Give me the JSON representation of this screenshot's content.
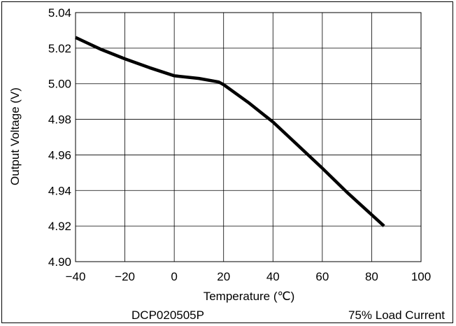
{
  "chart_data": {
    "type": "line",
    "xlabel": "Temperature (℃)",
    "ylabel": "Output Voltage (V)",
    "xlim": [
      -40,
      100
    ],
    "ylim": [
      4.9,
      5.04
    ],
    "x_ticks": [
      "−40",
      "−20",
      "0",
      "20",
      "40",
      "60",
      "80",
      "100"
    ],
    "x_tick_values": [
      -40,
      -20,
      0,
      20,
      40,
      60,
      80,
      100
    ],
    "y_ticks": [
      "5.04",
      "5.02",
      "5.00",
      "4.98",
      "4.96",
      "4.94",
      "4.92",
      "4.90"
    ],
    "y_tick_values": [
      5.04,
      5.02,
      5.0,
      4.98,
      4.96,
      4.94,
      4.92,
      4.9
    ],
    "grid": true,
    "series": [
      {
        "x": [
          -40,
          -30,
          -20,
          -10,
          0,
          10,
          18,
          20,
          30,
          40,
          50,
          60,
          70,
          85
        ],
        "y": [
          5.026,
          5.0195,
          5.014,
          5.009,
          5.0045,
          5.003,
          5.001,
          4.9995,
          4.9895,
          4.9785,
          4.9655,
          4.9525,
          4.939,
          4.92
        ]
      }
    ],
    "annotations": {
      "part_number": "DCP020505P",
      "condition": "75% Load Current"
    },
    "colors": {
      "line": "#000000",
      "grid": "#000000",
      "background": "#ffffff"
    }
  }
}
